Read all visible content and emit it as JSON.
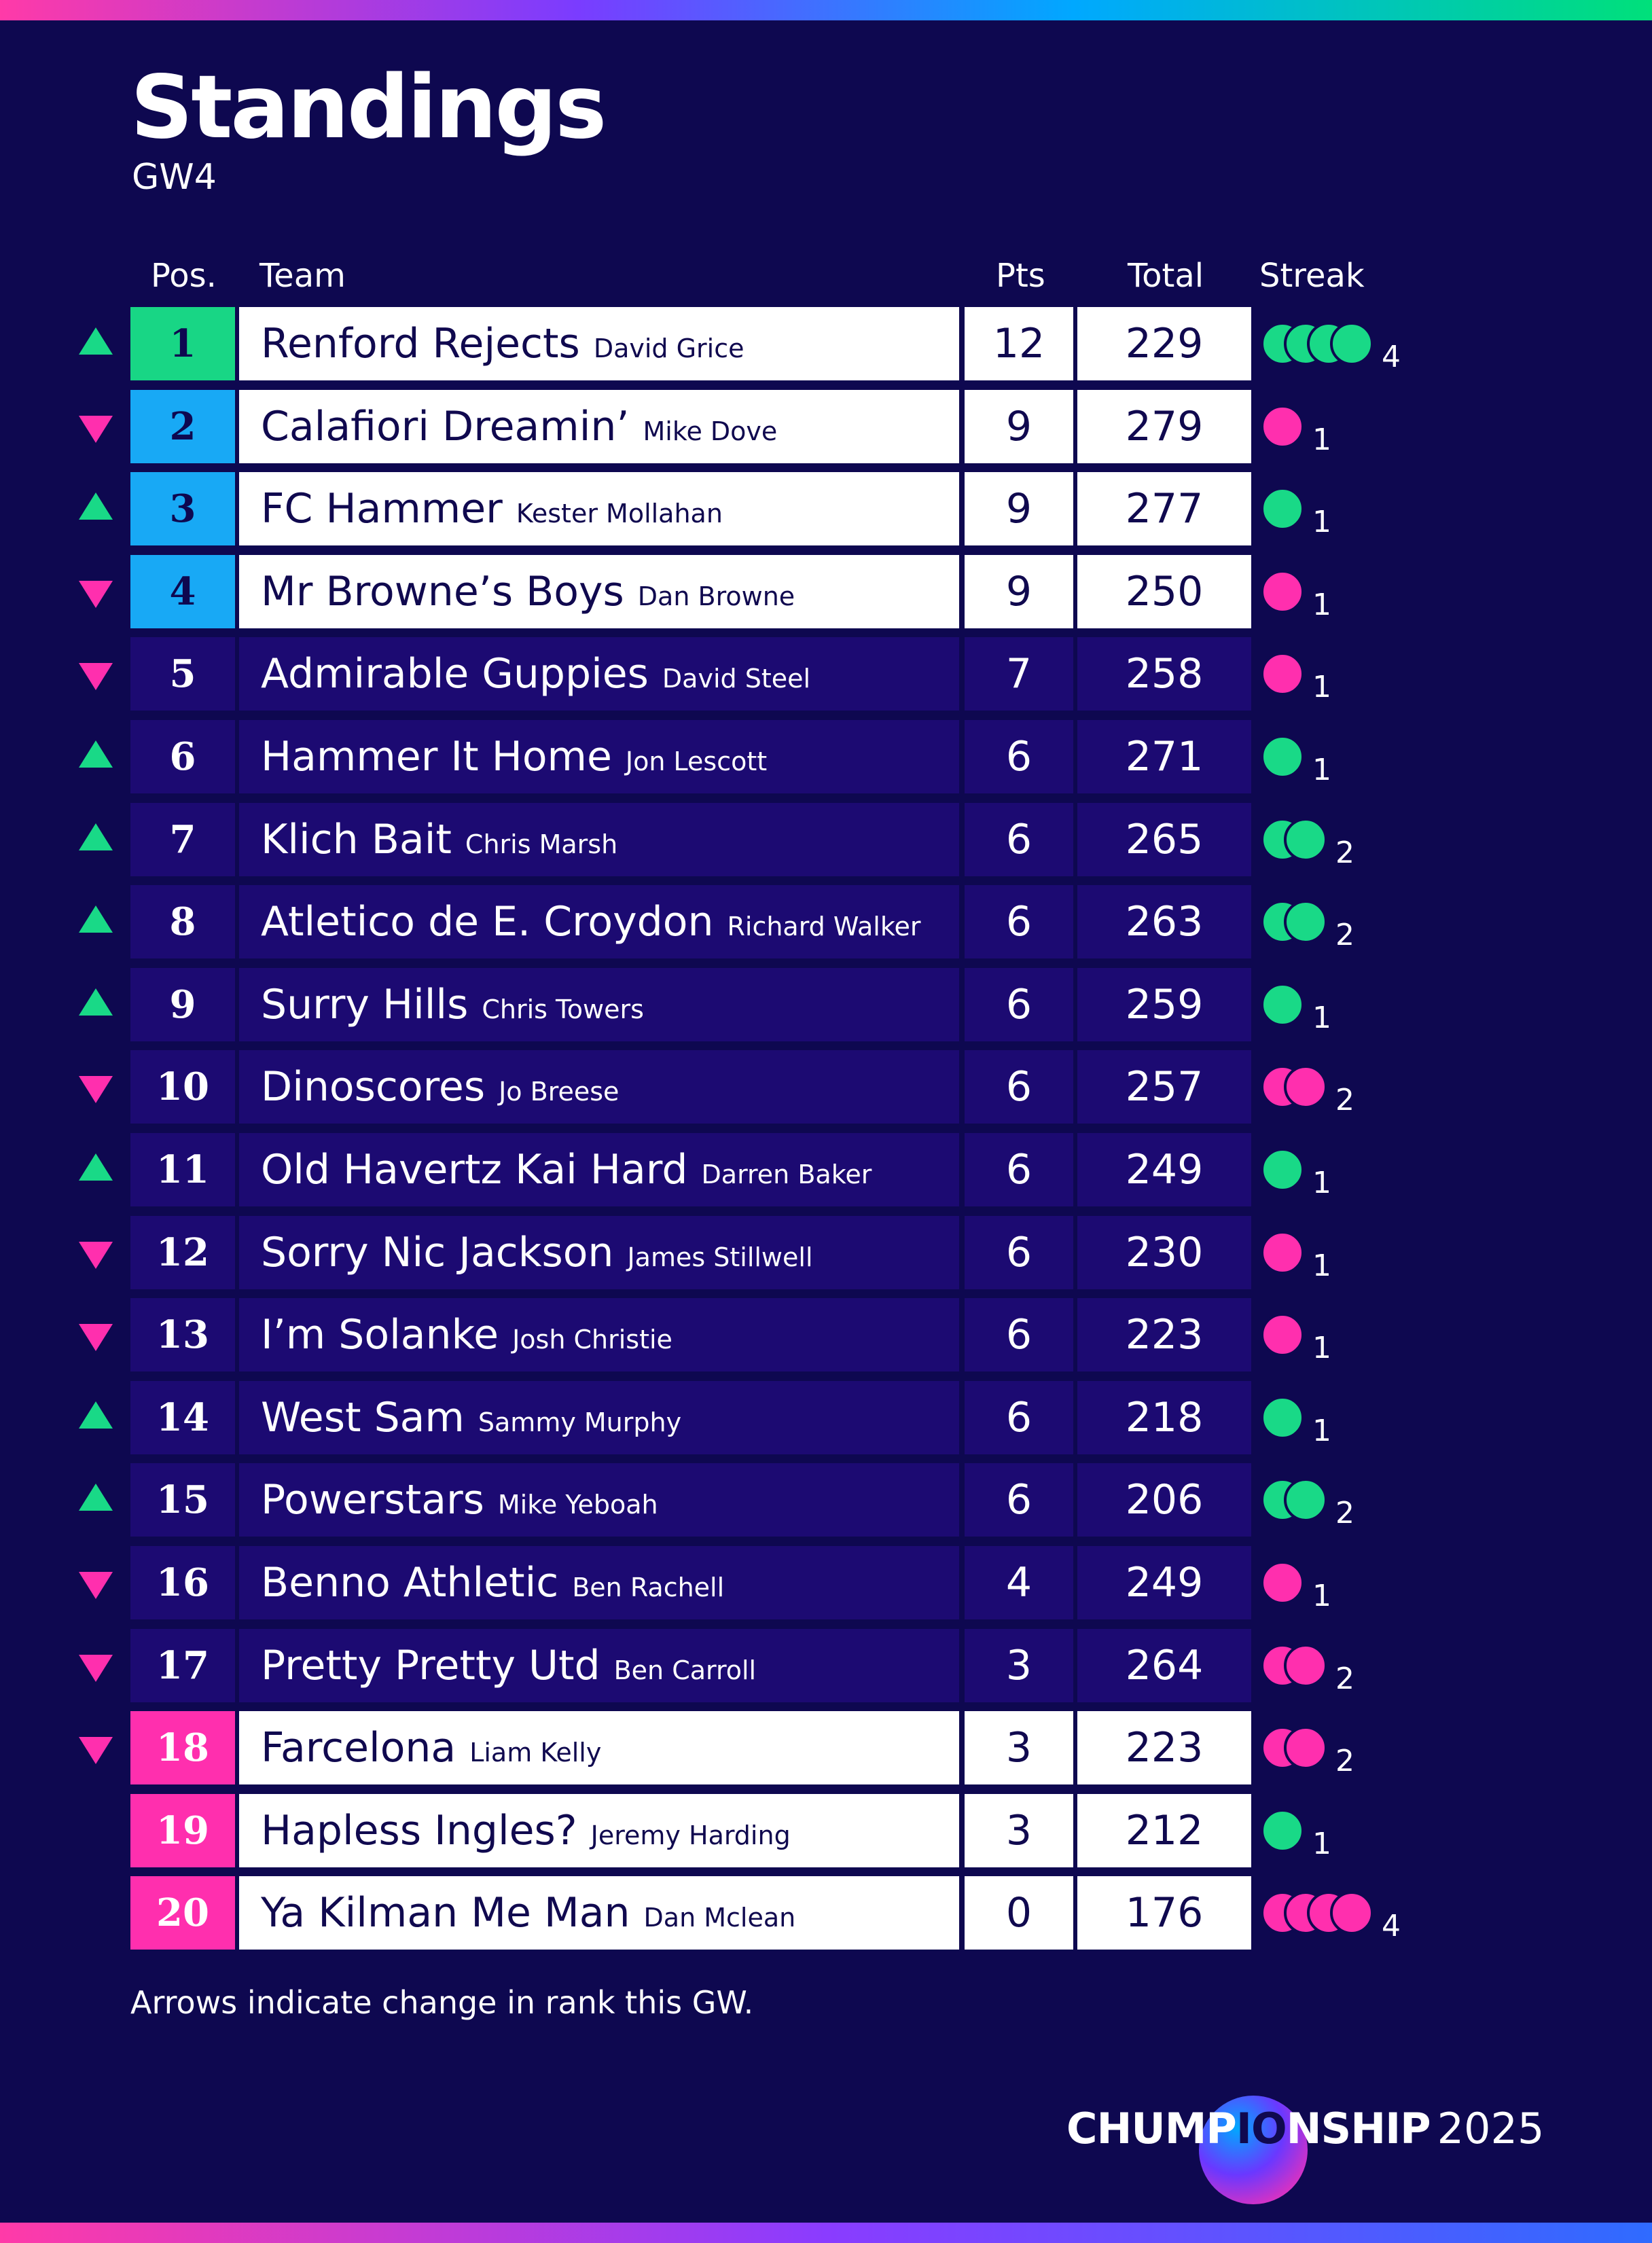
{
  "header": {
    "title": "Standings",
    "subtitle": "GW4"
  },
  "columns": {
    "pos": "Pos.",
    "team": "Team",
    "pts": "Pts",
    "total": "Total",
    "streak": "Streak"
  },
  "colors": {
    "background": "#0e0850",
    "row_dark": "#1c0a72",
    "row_light": "#ffffff",
    "champions": "#18d685",
    "top4": "#18a9f5",
    "relegation": "#ff2fae",
    "win": "#19d987",
    "loss": "#ff2fae"
  },
  "rows": [
    {
      "pos": "1",
      "team": "Renford Rejects",
      "manager": "David Grice",
      "pts": "12",
      "total": "229",
      "change": "up",
      "zone": "champions",
      "streak_type": "W",
      "streak": "4"
    },
    {
      "pos": "2",
      "team": "Calafiori Dreamin’",
      "manager": "Mike Dove",
      "pts": "9",
      "total": "279",
      "change": "down",
      "zone": "top4",
      "streak_type": "L",
      "streak": "1"
    },
    {
      "pos": "3",
      "team": "FC Hammer",
      "manager": "Kester Mollahan",
      "pts": "9",
      "total": "277",
      "change": "up",
      "zone": "top4",
      "streak_type": "W",
      "streak": "1"
    },
    {
      "pos": "4",
      "team": "Mr Browne’s Boys",
      "manager": "Dan Browne",
      "pts": "9",
      "total": "250",
      "change": "down",
      "zone": "top4",
      "streak_type": "L",
      "streak": "1"
    },
    {
      "pos": "5",
      "team": "Admirable Guppies",
      "manager": "David Steel",
      "pts": "7",
      "total": "258",
      "change": "down",
      "zone": "mid",
      "streak_type": "L",
      "streak": "1"
    },
    {
      "pos": "6",
      "team": "Hammer It Home",
      "manager": "Jon Lescott",
      "pts": "6",
      "total": "271",
      "change": "up",
      "zone": "mid",
      "streak_type": "W",
      "streak": "1"
    },
    {
      "pos": "7",
      "team": "Klich Bait",
      "manager": "Chris Marsh",
      "pts": "6",
      "total": "265",
      "change": "up",
      "zone": "mid",
      "streak_type": "W",
      "streak": "2"
    },
    {
      "pos": "8",
      "team": "Atletico de E. Croydon",
      "manager": "Richard Walker",
      "pts": "6",
      "total": "263",
      "change": "up",
      "zone": "mid",
      "streak_type": "W",
      "streak": "2"
    },
    {
      "pos": "9",
      "team": "Surry Hills",
      "manager": "Chris Towers",
      "pts": "6",
      "total": "259",
      "change": "up",
      "zone": "mid",
      "streak_type": "W",
      "streak": "1"
    },
    {
      "pos": "10",
      "team": "Dinoscores",
      "manager": "Jo Breese",
      "pts": "6",
      "total": "257",
      "change": "down",
      "zone": "mid",
      "streak_type": "L",
      "streak": "2"
    },
    {
      "pos": "11",
      "team": "Old Havertz Kai Hard",
      "manager": "Darren Baker",
      "pts": "6",
      "total": "249",
      "change": "up",
      "zone": "mid",
      "streak_type": "W",
      "streak": "1"
    },
    {
      "pos": "12",
      "team": "Sorry Nic Jackson",
      "manager": "James Stillwell",
      "pts": "6",
      "total": "230",
      "change": "down",
      "zone": "mid",
      "streak_type": "L",
      "streak": "1"
    },
    {
      "pos": "13",
      "team": "I’m Solanke",
      "manager": "Josh Christie",
      "pts": "6",
      "total": "223",
      "change": "down",
      "zone": "mid",
      "streak_type": "L",
      "streak": "1"
    },
    {
      "pos": "14",
      "team": "West Sam",
      "manager": "Sammy Murphy",
      "pts": "6",
      "total": "218",
      "change": "up",
      "zone": "mid",
      "streak_type": "W",
      "streak": "1"
    },
    {
      "pos": "15",
      "team": "Powerstars",
      "manager": "Mike Yeboah",
      "pts": "6",
      "total": "206",
      "change": "up",
      "zone": "mid",
      "streak_type": "W",
      "streak": "2"
    },
    {
      "pos": "16",
      "team": "Benno Athletic",
      "manager": "Ben Rachell",
      "pts": "4",
      "total": "249",
      "change": "down",
      "zone": "mid",
      "streak_type": "L",
      "streak": "1"
    },
    {
      "pos": "17",
      "team": "Pretty Pretty Utd",
      "manager": "Ben Carroll",
      "pts": "3",
      "total": "264",
      "change": "down",
      "zone": "mid",
      "streak_type": "L",
      "streak": "2"
    },
    {
      "pos": "18",
      "team": "Farcelona",
      "manager": "Liam Kelly",
      "pts": "3",
      "total": "223",
      "change": "down",
      "zone": "relegation",
      "streak_type": "L",
      "streak": "2"
    },
    {
      "pos": "19",
      "team": "Hapless Ingles?",
      "manager": "Jeremy Harding",
      "pts": "3",
      "total": "212",
      "change": "none",
      "zone": "relegation",
      "streak_type": "W",
      "streak": "1"
    },
    {
      "pos": "20",
      "team": "Ya Kilman Me Man",
      "manager": "Dan Mclean",
      "pts": "0",
      "total": "176",
      "change": "none",
      "zone": "relegation",
      "streak_type": "L",
      "streak": "4"
    }
  ],
  "footnote": "Arrows indicate change in rank this GW.",
  "brand": {
    "word_pre": "CHUMP",
    "word_highlight": "IO",
    "word_post": "NSHIP",
    "year": "2025"
  }
}
